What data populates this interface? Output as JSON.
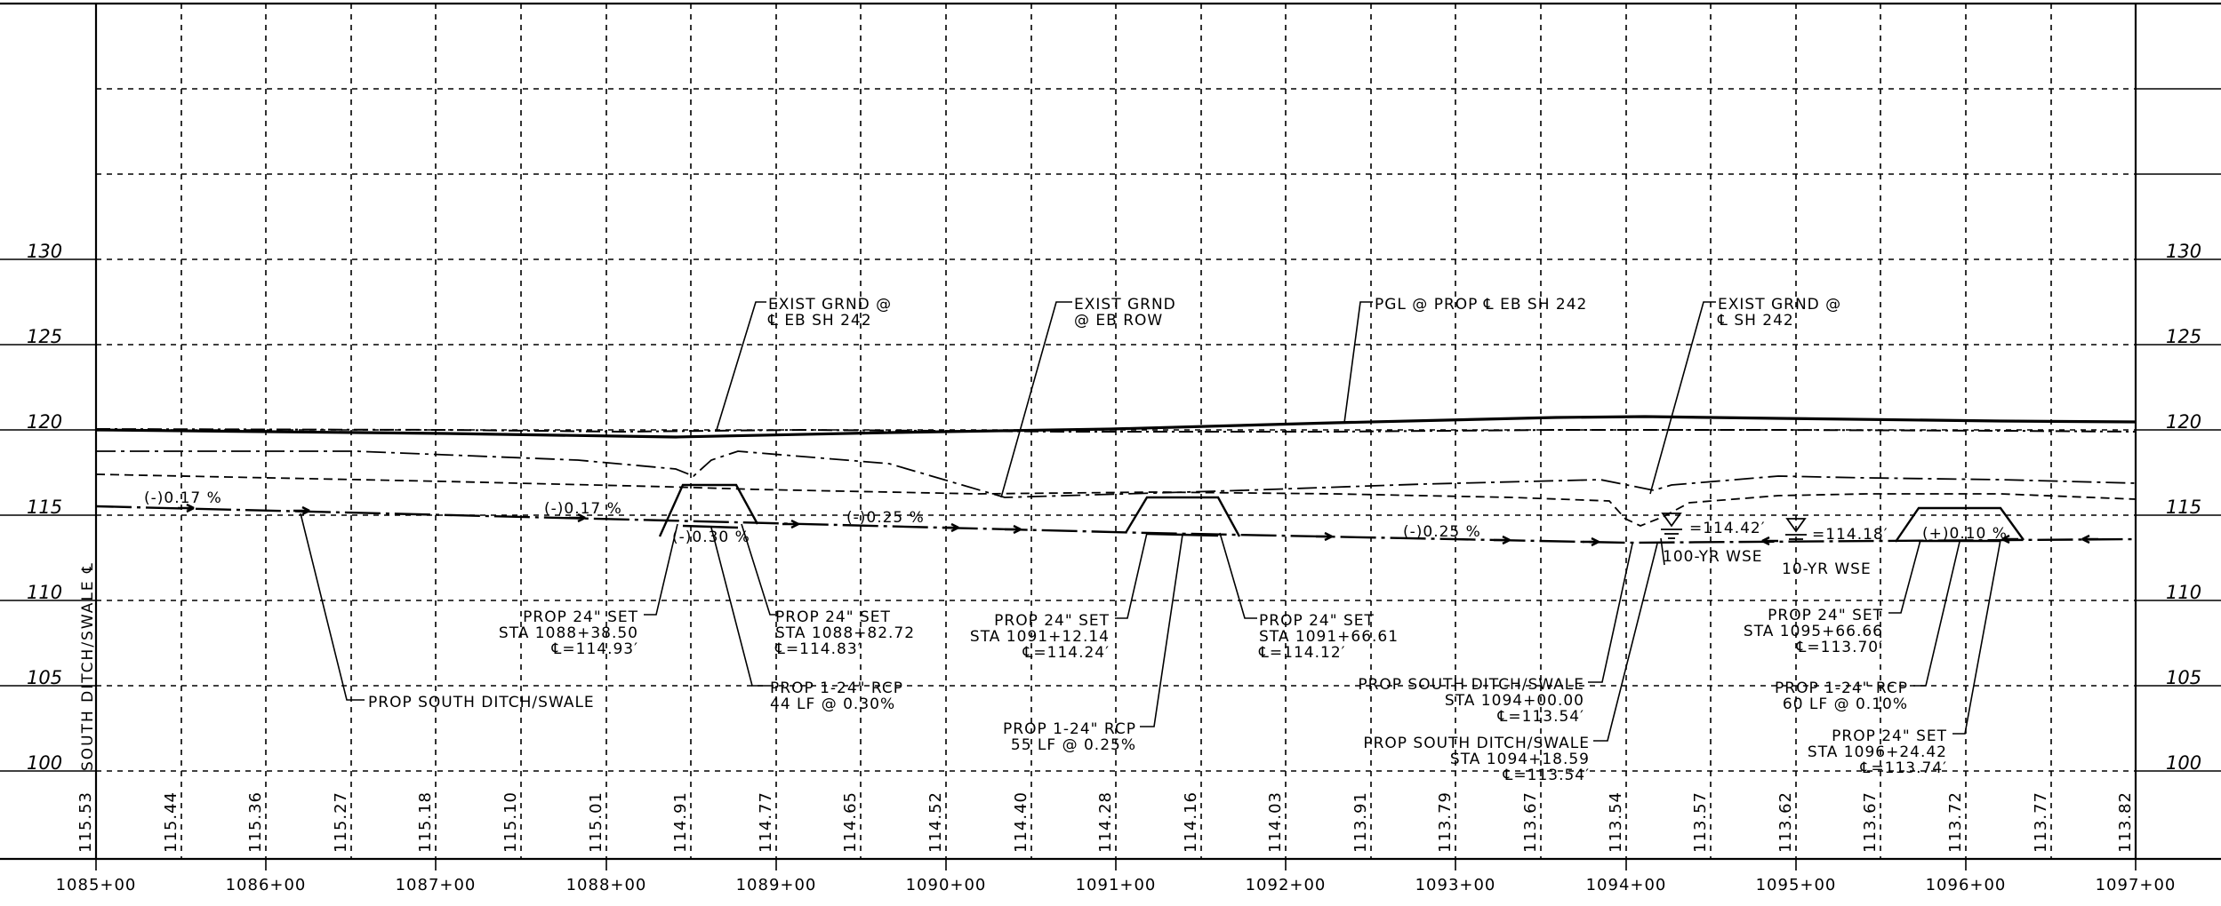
{
  "profile": {
    "side_title": "SOUTH DITCH/SWALE ℄",
    "y_axis_left": [
      "130",
      "125",
      "120",
      "115",
      "110",
      "105",
      "100"
    ],
    "y_axis_right": [
      "130",
      "125",
      "120",
      "115",
      "110",
      "105",
      "100"
    ],
    "stations": [
      "1085+00",
      "1086+00",
      "1087+00",
      "1088+00",
      "1089+00",
      "1090+00",
      "1091+00",
      "1092+00",
      "1093+00",
      "1094+00",
      "1095+00",
      "1096+00",
      "1097+00"
    ],
    "bottom_elevations": [
      "115.53",
      "115.44",
      "115.36",
      "115.27",
      "115.18",
      "115.10",
      "115.01",
      "114.91",
      "114.77",
      "114.65",
      "114.52",
      "114.40",
      "114.28",
      "114.16",
      "114.03",
      "113.91",
      "113.79",
      "113.67",
      "113.54",
      "113.57",
      "113.62",
      "113.67",
      "113.72",
      "113.77",
      "113.82"
    ],
    "slopes": [
      "(-)0.17 %",
      "(-)0.17 %",
      "(-)0.30 %",
      "(-)0.25 %",
      "(-)0.25 %",
      "(+)0.10 %"
    ],
    "callouts": {
      "exist_grnd_cl_1": "EXIST GRND @",
      "exist_grnd_cl_2": "℄ EB SH 242",
      "exist_grnd_row_1": "EXIST GRND",
      "exist_grnd_row_2": "@ EB ROW",
      "pgl": "PGL @ PROP ℄ EB SH 242",
      "exist_grnd_sh_1": "EXIST GRND @",
      "exist_grnd_sh_2": "℄ SH 242",
      "prop_south_ditch": "PROP SOUTH DITCH/SWALE"
    },
    "wse": {
      "yr100_elev": "=114.42′",
      "yr100_label": "100-YR WSE",
      "yr10_elev": "=114.18′",
      "yr10_label": "10-YR WSE"
    },
    "notes": [
      {
        "l1": "PROP 24\" SET",
        "l2": "STA 1088+38.50",
        "l3": "℄=114.93′"
      },
      {
        "l1": "PROP 24\" SET",
        "l2": "STA 1088+82.72",
        "l3": "℄=114.83′"
      },
      {
        "l1": "PROP 1-24\" RCP",
        "l2": "44 LF @ 0.30%"
      },
      {
        "l1": "PROP 24\" SET",
        "l2": "STA 1091+12.14",
        "l3": "℄=114.24′"
      },
      {
        "l1": "PROP 24\" SET",
        "l2": "STA 1091+66.61",
        "l3": "℄=114.12′"
      },
      {
        "l1": "PROP 1-24\" RCP",
        "l2": "55 LF @ 0.25%"
      },
      {
        "l1": "PROP SOUTH DITCH/SWALE",
        "l2": "STA 1094+00.00",
        "l3": "℄=113.54′"
      },
      {
        "l1": "PROP SOUTH DITCH/SWALE",
        "l2": "STA 1094+18.59",
        "l3": "℄=113.54′"
      },
      {
        "l1": "PROP 24\" SET",
        "l2": "STA 1095+66.66",
        "l3": "℄=113.70′"
      },
      {
        "l1": "PROP 1-24\" RCP",
        "l2": "60 LF @ 0.10%"
      },
      {
        "l1": "PROP 24\" SET",
        "l2": "STA 1096+24.42",
        "l3": "℄=113.74′"
      }
    ]
  }
}
